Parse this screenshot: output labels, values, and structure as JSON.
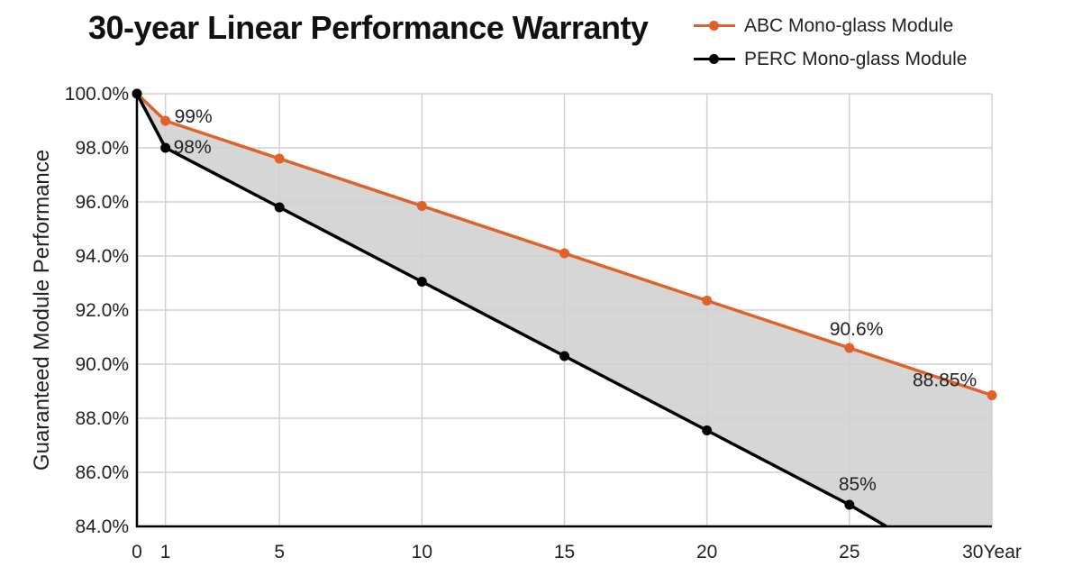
{
  "chart_data": {
    "type": "line",
    "title": "30-year Linear Performance Warranty",
    "ylabel": "Guaranteed Module Performance",
    "xlabel": "",
    "x_unit_label": "Year",
    "xlim": [
      0,
      30
    ],
    "ylim": [
      84.0,
      100.0
    ],
    "xticks": [
      0,
      1,
      5,
      10,
      15,
      20,
      25,
      30
    ],
    "yticks": [
      84,
      86,
      88,
      90,
      92,
      94,
      96,
      98,
      100
    ],
    "ytick_labels": [
      "84.0%",
      "86.0%",
      "88.0%",
      "90.0%",
      "92.0%",
      "94.0%",
      "96.0%",
      "98.0%",
      "100.0%"
    ],
    "grid": true,
    "legend_position": "top-right",
    "fill_between_series": true,
    "fill_color": "#d6d6d6",
    "series": [
      {
        "name": "ABC Mono-glass Module",
        "color": "#e0622a",
        "x": [
          0,
          1,
          5,
          10,
          15,
          20,
          25,
          30
        ],
        "y": [
          100.0,
          99.0,
          97.6,
          95.85,
          94.1,
          92.35,
          90.6,
          88.85
        ],
        "labels": [
          {
            "index": 1,
            "text": "99%"
          },
          {
            "index": 6,
            "text": "90.6%"
          },
          {
            "index": 7,
            "text": "88.85%"
          }
        ]
      },
      {
        "name": "PERC Mono-glass Module",
        "color": "#000000",
        "x": [
          0,
          1,
          5,
          10,
          15,
          20,
          25,
          26.3
        ],
        "y": [
          100.0,
          98.0,
          95.8,
          93.05,
          90.3,
          87.55,
          84.8,
          84.0
        ],
        "markers": [
          0,
          1,
          2,
          3,
          4,
          5,
          6
        ],
        "labels": [
          {
            "index": 1,
            "text": "98%"
          },
          {
            "index": 6,
            "text": "85%"
          }
        ]
      }
    ]
  }
}
